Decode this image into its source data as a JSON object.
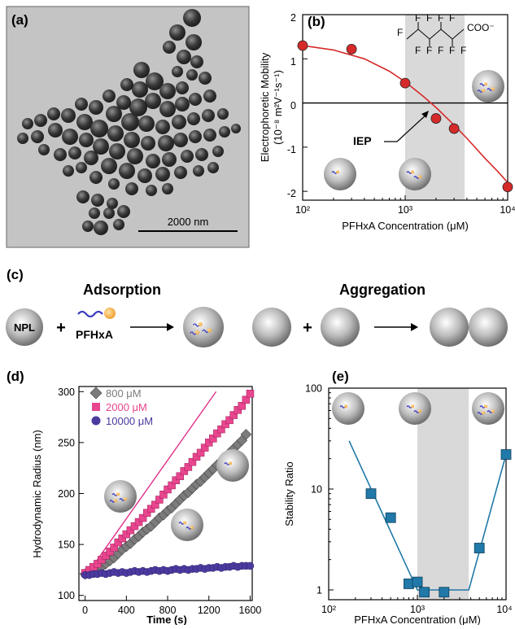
{
  "panel_labels": [
    "(a)",
    "(b)",
    "(c)",
    "(d)",
    "(e)"
  ],
  "panel_a": {
    "scale_bar_text": "2000 nm"
  },
  "panel_c": {
    "adsorption_title": "Adsorption",
    "aggregation_title": "Aggregation",
    "npl_label": "NPL",
    "pfhxa_label": "PFHxA",
    "plus": "+"
  },
  "colors": {
    "red_points": "#d62a2a",
    "pink": "#e8468e",
    "gray": "#7c7c7c",
    "purple": "#4d3aa0",
    "blue": "#2079a8",
    "shade": "#d9d9d9"
  },
  "chart_data": [
    {
      "id": "b",
      "type": "scatter",
      "xscale": "log",
      "xlim": [
        100,
        10000
      ],
      "ylim": [
        -2.2,
        2
      ],
      "xlabel": "PFHxA Concentration (μM)",
      "ylabel_line1": "Electrophoretic Mobility",
      "ylabel_line2": "(10⁻⁸ m²V⁻¹s⁻¹)",
      "x_ticks": [
        "10²",
        "10³",
        "10⁴"
      ],
      "y_ticks": [
        "-2",
        "-1",
        "0",
        "1",
        "2"
      ],
      "shaded_range": [
        1000,
        3800
      ],
      "points": {
        "x": [
          100,
          300,
          1000,
          2000,
          3000,
          10000
        ],
        "y": [
          1.3,
          1.22,
          0.45,
          -0.35,
          -0.58,
          -1.9
        ]
      },
      "fit": {
        "x": [
          100,
          200,
          400,
          700,
          1000,
          1500,
          2000,
          3000,
          4000,
          6000,
          8000,
          10000
        ],
        "y": [
          1.3,
          1.2,
          1.0,
          0.72,
          0.48,
          0.15,
          -0.1,
          -0.5,
          -0.8,
          -1.25,
          -1.55,
          -1.8
        ]
      },
      "annotation": "IEP",
      "molecule_f": "F",
      "molecule_coo": "COO⁻"
    },
    {
      "id": "d",
      "type": "scatter",
      "xlim": [
        -60,
        1620
      ],
      "ylim": [
        95,
        305
      ],
      "xlabel": "Time (s)",
      "ylabel": "Hydrodynamic Radius (nm)",
      "x_ticks": [
        0,
        400,
        800,
        1200,
        1600
      ],
      "y_ticks": [
        100,
        150,
        200,
        250,
        300
      ],
      "legend_position": "top-left",
      "series": [
        {
          "name": "800 μM",
          "color": "#7c7c7c",
          "marker": "diamond",
          "x": [
            0,
            40,
            80,
            120,
            160,
            200,
            240,
            280,
            320,
            360,
            400,
            440,
            480,
            520,
            560,
            600,
            640,
            680,
            720,
            760,
            800,
            840,
            880,
            920,
            960,
            1000,
            1040,
            1080,
            1120,
            1160,
            1200,
            1240,
            1280,
            1320,
            1360,
            1400,
            1440,
            1480,
            1520,
            1560
          ],
          "y": [
            121,
            122,
            124,
            126,
            128,
            131,
            134,
            137,
            141,
            145,
            148,
            151,
            155,
            158,
            162,
            165,
            168,
            172,
            176,
            179,
            183,
            186,
            190,
            194,
            198,
            201,
            205,
            209,
            212,
            216,
            220,
            224,
            228,
            232,
            236,
            240,
            244,
            248,
            252,
            258
          ]
        },
        {
          "name": "2000 μM",
          "color": "#e8468e",
          "marker": "square",
          "x": [
            0,
            40,
            80,
            120,
            160,
            200,
            240,
            280,
            320,
            360,
            400,
            440,
            480,
            520,
            560,
            600,
            640,
            680,
            720,
            760,
            800,
            840,
            880,
            920,
            960,
            1000,
            1040,
            1080,
            1120,
            1160,
            1200,
            1240,
            1280,
            1320,
            1360,
            1400,
            1440,
            1480,
            1520,
            1560,
            1600
          ],
          "y": [
            122,
            125,
            128,
            131,
            135,
            139,
            143,
            147,
            152,
            156,
            160,
            164,
            168,
            172,
            176,
            181,
            185,
            189,
            194,
            199,
            204,
            208,
            213,
            217,
            222,
            226,
            231,
            236,
            240,
            245,
            250,
            254,
            259,
            263,
            268,
            272,
            277,
            282,
            286,
            292,
            298
          ]
        },
        {
          "name": "10000 μM",
          "color": "#4d3aa0",
          "marker": "circle",
          "x": [
            0,
            40,
            80,
            120,
            160,
            200,
            240,
            280,
            320,
            360,
            400,
            440,
            480,
            520,
            560,
            600,
            640,
            680,
            720,
            760,
            800,
            840,
            880,
            920,
            960,
            1000,
            1040,
            1080,
            1120,
            1160,
            1200,
            1240,
            1280,
            1320,
            1360,
            1400,
            1440,
            1480,
            1520,
            1560,
            1600
          ],
          "y": [
            120,
            120,
            121,
            121,
            122,
            121,
            122,
            123,
            122,
            123,
            122,
            123,
            124,
            123,
            124,
            123,
            124,
            125,
            124,
            125,
            124,
            125,
            126,
            125,
            126,
            125,
            126,
            126,
            127,
            126,
            127,
            127,
            128,
            127,
            128,
            128,
            129,
            128,
            129,
            129,
            129
          ]
        }
      ],
      "fit_line": {
        "x": [
          0,
          1270
        ],
        "y": [
          118,
          300
        ]
      }
    },
    {
      "id": "e",
      "type": "scatter",
      "xscale": "log",
      "yscale": "log",
      "xlim": [
        100,
        10000
      ],
      "ylim": [
        0.8,
        100
      ],
      "xlabel": "PFHxA Concentration (μM)",
      "ylabel": "Stability Ratio",
      "x_ticks": [
        "10²",
        "10³",
        "10⁴"
      ],
      "y_ticks": [
        "1",
        "10",
        "100"
      ],
      "shaded_range": [
        1000,
        3800
      ],
      "points": {
        "x": [
          300,
          500,
          800,
          1000,
          1200,
          2000,
          5000,
          10000
        ],
        "y": [
          9,
          5.2,
          1.15,
          1.2,
          0.95,
          0.95,
          2.6,
          22
        ]
      },
      "fit": {
        "x": [
          170,
          1000,
          3800,
          10000
        ],
        "y": [
          30,
          1.0,
          1.0,
          22
        ]
      }
    }
  ]
}
